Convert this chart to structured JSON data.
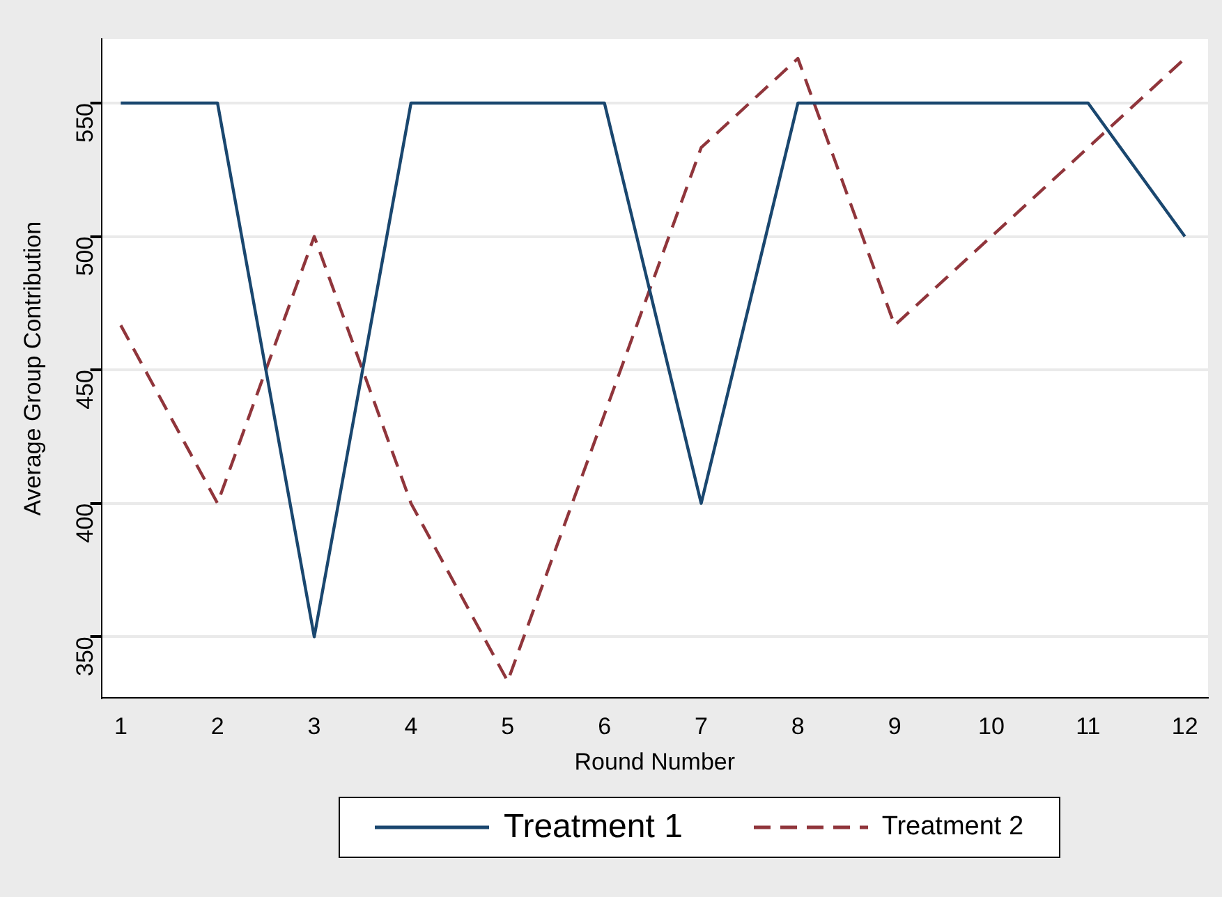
{
  "chart_data": {
    "type": "line",
    "xlabel": "Round Number",
    "ylabel": "Average Group Contribution",
    "x": [
      1,
      2,
      3,
      4,
      5,
      6,
      7,
      8,
      9,
      10,
      11,
      12
    ],
    "series": [
      {
        "name": "Treatment 1",
        "color": "#1a476f",
        "line_style": "solid",
        "values": [
          550,
          550,
          350,
          550,
          550,
          550,
          400,
          550,
          550,
          550,
          550,
          500
        ]
      },
      {
        "name": "Treatment 2",
        "color": "#90353b",
        "line_style": "dashed",
        "values": [
          466.7,
          400,
          500,
          400,
          333.3,
          433.3,
          533.3,
          566.7,
          466.7,
          500,
          533.3,
          566.7
        ]
      }
    ],
    "xlim": [
      0.8,
      12.24
    ],
    "xticks": [
      1,
      2,
      3,
      4,
      5,
      6,
      7,
      8,
      9,
      10,
      11,
      12
    ],
    "ylim": [
      327,
      574
    ],
    "yticks": [
      350,
      400,
      450,
      500,
      550
    ],
    "grid": "y",
    "legend": "bottom",
    "marker": "none"
  }
}
